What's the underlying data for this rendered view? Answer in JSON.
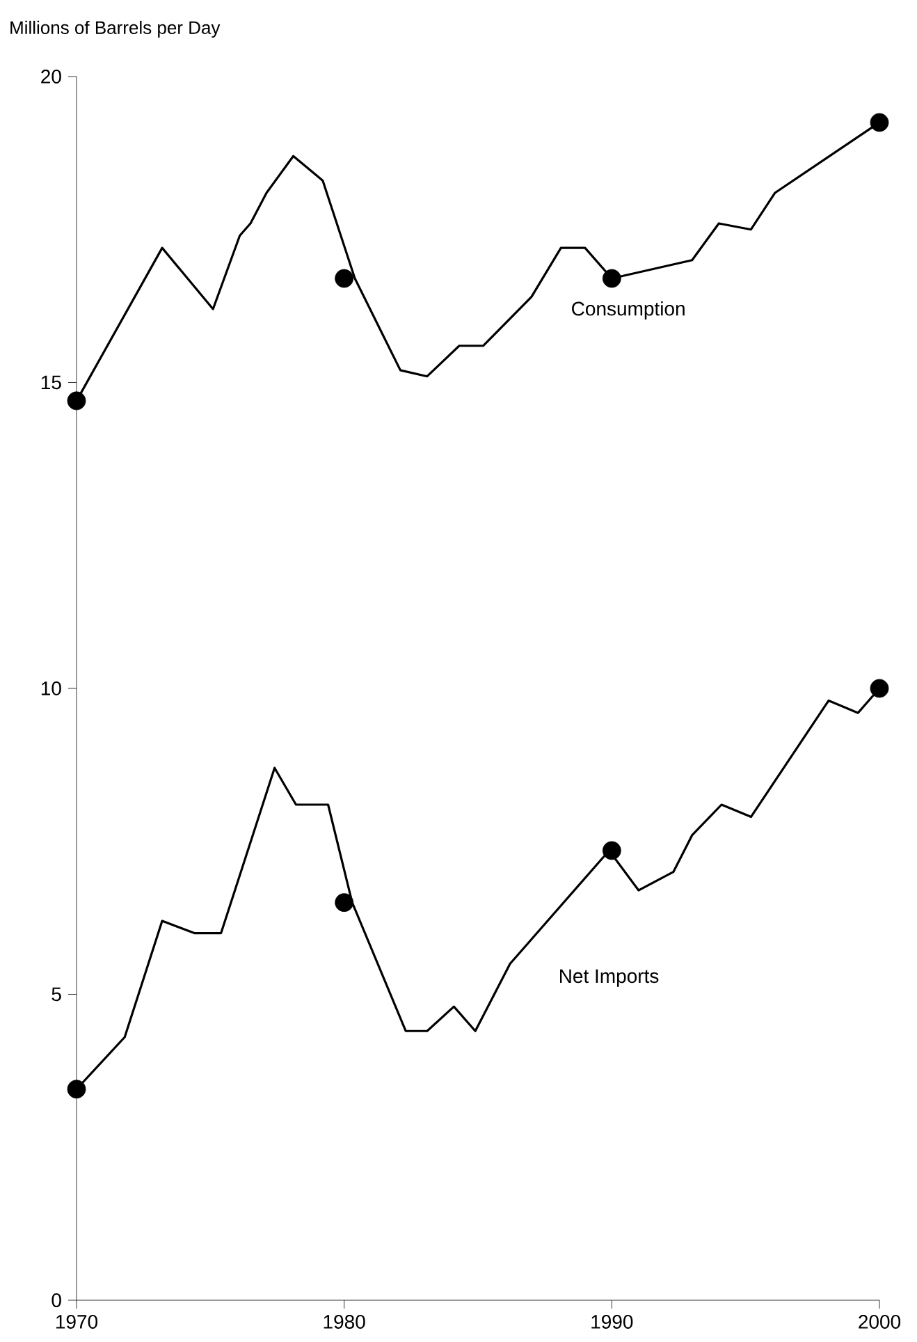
{
  "chart_data": {
    "type": "line",
    "ylabel": "Millions of Barrels per Day",
    "xlim": [
      1970,
      2000
    ],
    "ylim": [
      0,
      20
    ],
    "xticks": [
      1970,
      1980,
      1990,
      2000
    ],
    "yticks": [
      0,
      5,
      10,
      15,
      20
    ],
    "grid": false,
    "line_style": "solid",
    "series": [
      {
        "name": "Consumption",
        "color": "#000000",
        "x": [
          1970,
          1973.2,
          1975.1,
          1976.1,
          1976.5,
          1977.1,
          1978.1,
          1979.2,
          1980.4,
          1982.1,
          1983.1,
          1984.3,
          1985.2,
          1987,
          1988.1,
          1989,
          1990,
          1993,
          1994,
          1995.2,
          1996.1,
          2000
        ],
        "values": [
          14.7,
          17.2,
          16.2,
          17.4,
          17.6,
          18.1,
          18.7,
          18.3,
          16.7,
          15.2,
          15.1,
          15.6,
          15.6,
          16.4,
          17.2,
          17.2,
          16.7,
          17.0,
          17.6,
          17.5,
          18.1,
          19.25
        ]
      },
      {
        "name": "Net Imports",
        "color": "#000000",
        "x": [
          1970,
          1971.8,
          1973.2,
          1974.4,
          1975.4,
          1977.4,
          1978.2,
          1979.4,
          1980.3,
          1982.3,
          1983.1,
          1984.1,
          1984.9,
          1986.2,
          1989.9,
          1991,
          1992.3,
          1993,
          1994.1,
          1995.2,
          1998.1,
          1999.2,
          2000
        ],
        "values": [
          3.45,
          4.3,
          6.2,
          6.0,
          6.0,
          8.7,
          8.1,
          8.1,
          6.5,
          4.4,
          4.4,
          4.8,
          4.4,
          5.5,
          7.35,
          6.7,
          7.0,
          7.6,
          8.1,
          7.9,
          9.8,
          9.6,
          10.0
        ]
      },
      {
        "type": "scatter",
        "color": "#000000",
        "marker": "circle",
        "x": [
          1970,
          1980,
          1990,
          2000
        ],
        "values": [
          14.7,
          16.7,
          16.7,
          19.25
        ]
      },
      {
        "type": "scatter",
        "color": "#000000",
        "marker": "circle",
        "x": [
          1970,
          1980,
          1990,
          2000
        ],
        "values": [
          3.45,
          6.5,
          7.35,
          10.0
        ]
      }
    ]
  }
}
